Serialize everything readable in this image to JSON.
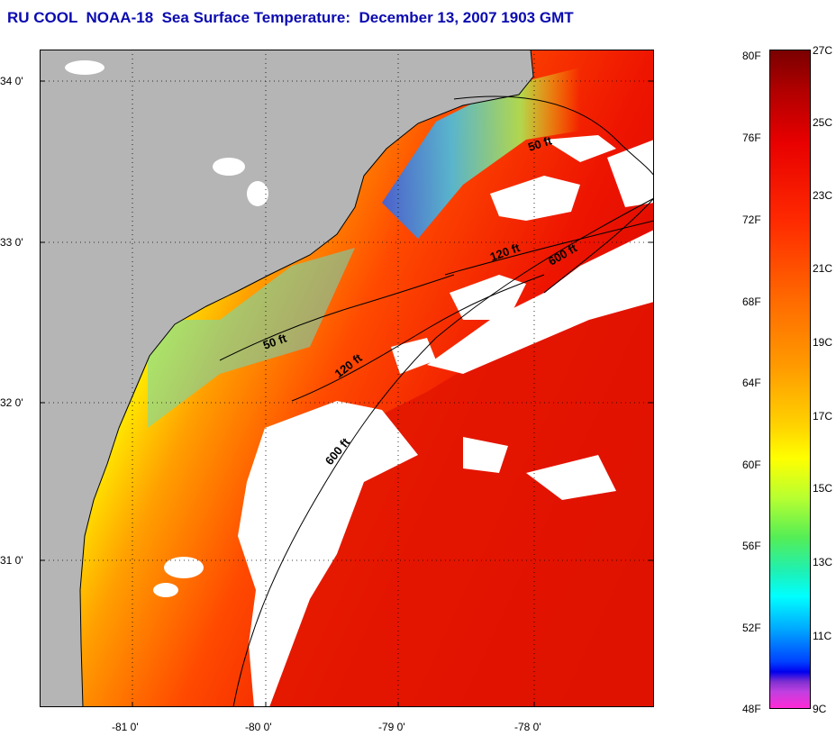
{
  "title": "RU COOL  NOAA-18  Sea Surface Temperature:  December 13, 2007 1903 GMT",
  "map": {
    "lat_labels": [
      "34 0'",
      "33 0'",
      "32 0'",
      "31 0'"
    ],
    "lon_labels": [
      "-81 0'",
      "-80 0'",
      "-79 0'",
      "-78 0'"
    ],
    "contour_labels": [
      "50 ft",
      "120 ft",
      "600 ft",
      "50 ft",
      "120 ft",
      "600 ft"
    ]
  },
  "colorbar": {
    "fahrenheit_labels": [
      "80F",
      "76F",
      "72F",
      "68F",
      "64F",
      "60F",
      "56F",
      "52F",
      "48F"
    ],
    "celsius_labels": [
      "27C",
      "25C",
      "23C",
      "21C",
      "19C",
      "17C",
      "15C",
      "13C",
      "11C",
      "9C"
    ]
  },
  "colors": {
    "title": "#0b0bb0",
    "land": "#b5b5b5",
    "cloud": "#ffffff",
    "warm": "#e80000",
    "cool": "#00c8ff"
  }
}
